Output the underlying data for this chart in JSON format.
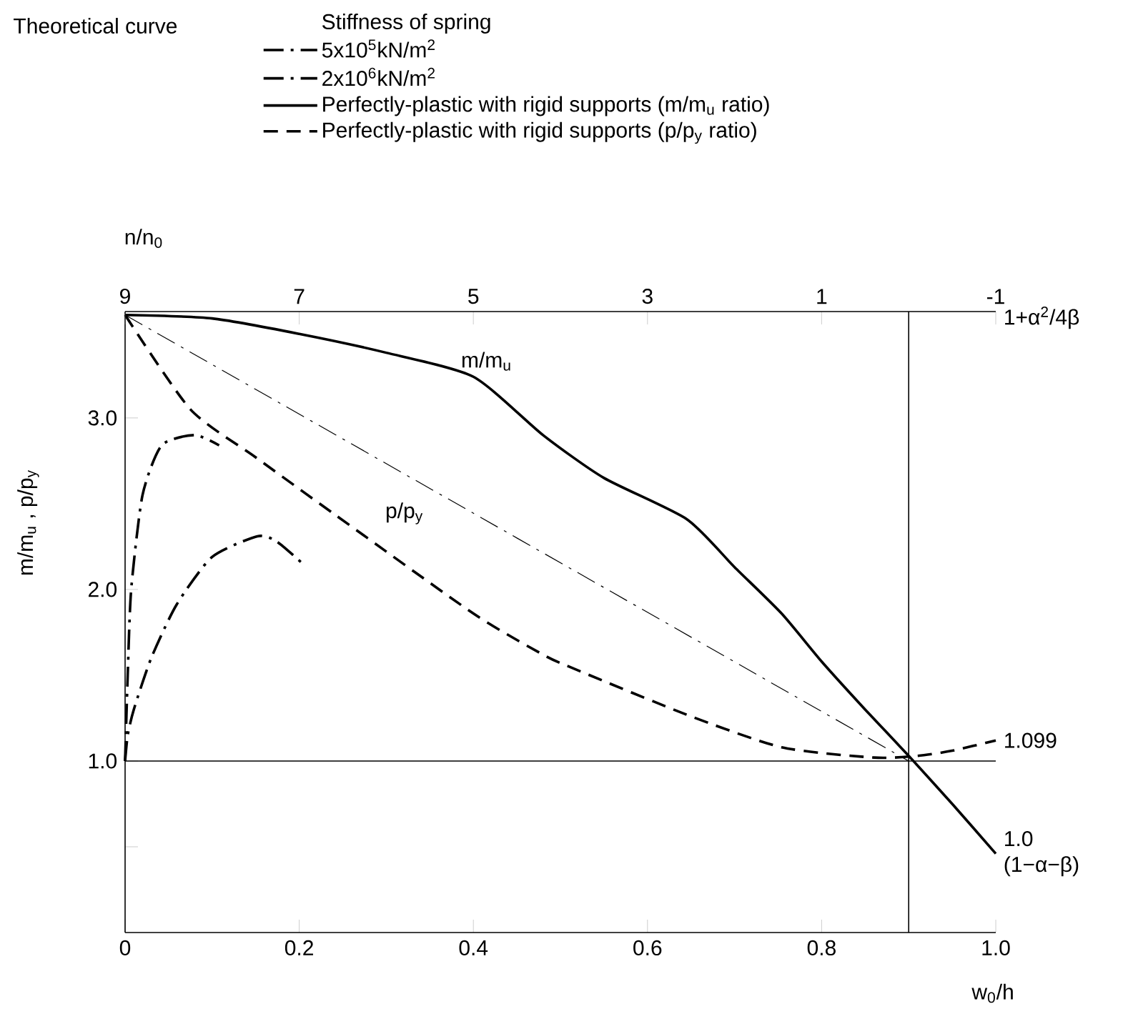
{
  "chart_data": {
    "type": "line",
    "legend_title": "Stiffness of spring",
    "xlabel": "w$_{0}$/h",
    "ylabel": "m/m$_{u}$ , p/p$_{y}$",
    "x2label": "n/n$_{0}$",
    "annotations": [
      "Theoretical curve",
      "m/m$_{u}$",
      "p/p$_{y}$",
      "1+α$^{2}$/4β",
      {
        "text": "1.099",
        "x": 1.0,
        "y": 1.12
      },
      {
        "text": "1.0 (1−α−β)",
        "x": 1.0,
        "y": 0.46
      }
    ],
    "series": [
      {
        "name": "5x10$^{5}$kN/m$^{2}$",
        "color": "#000000",
        "line_style": "dashdot",
        "x": [
          0,
          0.003,
          0.01,
          0.03,
          0.059,
          0.1,
          0.152,
          0.174,
          0.204
        ],
        "values": [
          1.0,
          1.15,
          1.3,
          1.6,
          1.91,
          2.19,
          2.31,
          2.28,
          2.15
        ]
      },
      {
        "name": "2x10$^{6}$kN/m$^{2}$",
        "color": "#000000",
        "line_style": "dashdot",
        "x": [
          0,
          0.003,
          0.007,
          0.02,
          0.042,
          0.08,
          0.108
        ],
        "values": [
          1.0,
          1.5,
          2.0,
          2.55,
          2.84,
          2.9,
          2.84
        ]
      },
      {
        "name": "Perfectly-plastic with rigid supports (m/m$_{u}$ ratio)",
        "color": "#000000",
        "line_style": "solid",
        "x": [
          0,
          0.1,
          0.2,
          0.3,
          0.4,
          0.48,
          0.55,
          0.645,
          0.7,
          0.754,
          0.8,
          0.85,
          0.9,
          0.95,
          1.0
        ],
        "values": [
          3.6,
          3.58,
          3.49,
          3.38,
          3.24,
          2.9,
          2.65,
          2.41,
          2.13,
          1.86,
          1.58,
          1.3,
          1.03,
          0.75,
          0.46
        ]
      },
      {
        "name": "Perfectly-plastic with rigid supports (p/p$_{y}$ ratio)",
        "color": "#000000",
        "line_style": "dashed",
        "x": [
          0,
          0.075,
          0.15,
          0.24,
          0.4,
          0.48,
          0.51,
          0.645,
          0.754,
          0.86,
          0.91,
          0.95,
          1.0
        ],
        "values": [
          3.6,
          3.05,
          2.77,
          2.44,
          1.86,
          1.62,
          1.55,
          1.27,
          1.08,
          1.02,
          1.03,
          1.06,
          1.12
        ]
      },
      {
        "color": "#000000",
        "line_style": "dashdot",
        "x": [
          0,
          0.9
        ],
        "values": [
          3.6,
          1.0
        ]
      }
    ],
    "xlim": [
      0,
      1.0
    ],
    "xticks": [
      0,
      0.2,
      0.4,
      0.6,
      0.8,
      {
        "value": 1.0,
        "label": "1.0"
      }
    ],
    "ylim": [
      0,
      3.62
    ],
    "yticks": [
      {
        "value": 0.5,
        "label": null
      },
      {
        "value": 1.0,
        "label": "1.0"
      },
      {
        "value": 2.0,
        "label": "2.0"
      },
      {
        "value": 3.0,
        "label": "3.0"
      }
    ],
    "x2lim": [
      9,
      -1
    ],
    "x2ticks": [
      9,
      7,
      5,
      3,
      1,
      -1
    ],
    "ref_lines": [
      {
        "axis": "x",
        "value": 0.9
      },
      {
        "axis": "y",
        "value": 1.0
      }
    ],
    "legend": "top"
  }
}
